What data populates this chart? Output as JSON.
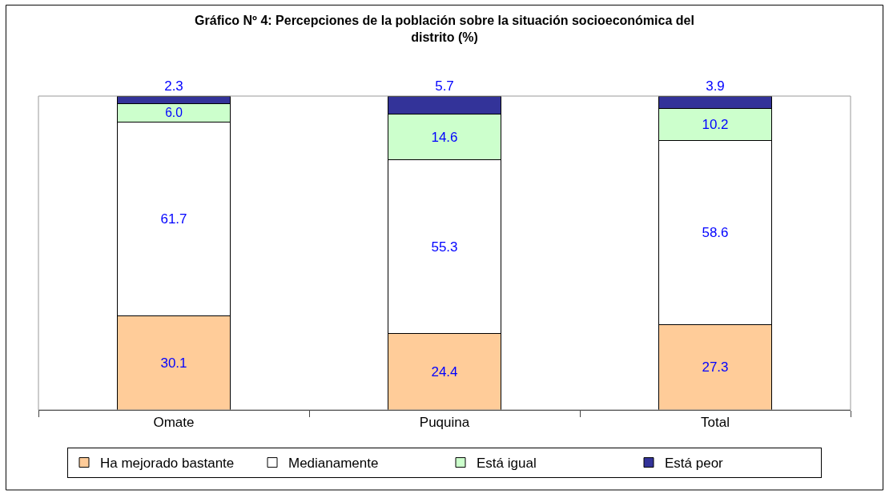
{
  "chart_data": {
    "type": "bar",
    "stacked": true,
    "title": "Gráfico Nº 4: Percepciones de la población sobre la situación socioeconómica del\ndistrito (%)",
    "categories": [
      "Omate",
      "Puquina",
      "Total"
    ],
    "series": [
      {
        "name": "Ha mejorado bastante",
        "color": "#ffcc99",
        "values": [
          30.1,
          24.4,
          27.3
        ],
        "value_labels": [
          "30.1",
          "24.4",
          "27.3"
        ]
      },
      {
        "name": "Medianamente",
        "color": "#ffffff",
        "values": [
          61.7,
          55.3,
          58.6
        ],
        "value_labels": [
          "61.7",
          "55.3",
          "58.6"
        ]
      },
      {
        "name": "Está igual",
        "color": "#ccffcc",
        "values": [
          6.0,
          14.6,
          10.2
        ],
        "value_labels": [
          "6.0",
          "14.6",
          "10.2"
        ]
      },
      {
        "name": "Está peor",
        "color": "#333399",
        "values": [
          2.3,
          5.7,
          3.9
        ],
        "value_labels": [
          "2.3",
          "5.7",
          "3.9"
        ]
      }
    ],
    "legend": "bottom"
  }
}
